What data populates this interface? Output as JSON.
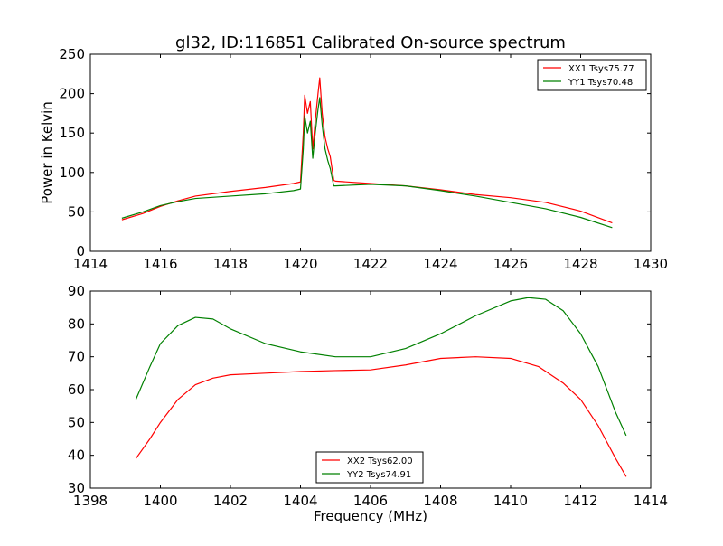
{
  "figure": {
    "title": "gl32, ID:116851 Calibrated On-source spectrum",
    "ylabel": "Power in Kelvin",
    "xlabel": "Frequency (MHz)"
  },
  "chart_data": [
    {
      "type": "line",
      "title": "gl32, ID:116851 Calibrated On-source spectrum",
      "xlabel": "",
      "ylabel": "Power in Kelvin",
      "xlim": [
        1414,
        1430
      ],
      "ylim": [
        0,
        250
      ],
      "xticks": [
        1414,
        1416,
        1418,
        1420,
        1422,
        1424,
        1426,
        1428,
        1430
      ],
      "yticks": [
        0,
        50,
        100,
        150,
        200,
        250
      ],
      "grid": false,
      "legend_position": "top-right",
      "series": [
        {
          "name": "XX1 Tsys75.77",
          "color": "#ff0000",
          "points": [
            [
              1414.9,
              40
            ],
            [
              1415.5,
              48
            ],
            [
              1416,
              57
            ],
            [
              1416.5,
              64
            ],
            [
              1417,
              70
            ],
            [
              1418,
              76
            ],
            [
              1419,
              81
            ],
            [
              1419.8,
              86
            ],
            [
              1420.0,
              88
            ],
            [
              1420.08,
              150
            ],
            [
              1420.12,
              198
            ],
            [
              1420.2,
              175
            ],
            [
              1420.28,
              190
            ],
            [
              1420.35,
              130
            ],
            [
              1420.42,
              165
            ],
            [
              1420.5,
              200
            ],
            [
              1420.55,
              220
            ],
            [
              1420.62,
              175
            ],
            [
              1420.7,
              145
            ],
            [
              1420.78,
              130
            ],
            [
              1420.85,
              120
            ],
            [
              1420.95,
              90
            ],
            [
              1421,
              89
            ],
            [
              1422,
              86
            ],
            [
              1423,
              83
            ],
            [
              1424,
              78
            ],
            [
              1425,
              72
            ],
            [
              1426,
              68
            ],
            [
              1427,
              62
            ],
            [
              1428,
              51
            ],
            [
              1428.9,
              36
            ]
          ]
        },
        {
          "name": "YY1 Tsys70.48",
          "color": "#008000",
          "points": [
            [
              1414.9,
              42
            ],
            [
              1415.5,
              50
            ],
            [
              1416,
              58
            ],
            [
              1416.5,
              63
            ],
            [
              1417,
              67
            ],
            [
              1418,
              70
            ],
            [
              1419,
              73
            ],
            [
              1419.8,
              77
            ],
            [
              1420.0,
              79
            ],
            [
              1420.08,
              130
            ],
            [
              1420.12,
              172
            ],
            [
              1420.2,
              150
            ],
            [
              1420.28,
              165
            ],
            [
              1420.35,
              118
            ],
            [
              1420.42,
              150
            ],
            [
              1420.5,
              180
            ],
            [
              1420.55,
              195
            ],
            [
              1420.62,
              160
            ],
            [
              1420.7,
              130
            ],
            [
              1420.78,
              115
            ],
            [
              1420.85,
              105
            ],
            [
              1420.95,
              83
            ],
            [
              1421,
              83
            ],
            [
              1422,
              85
            ],
            [
              1423,
              83
            ],
            [
              1424,
              77
            ],
            [
              1425,
              70
            ],
            [
              1426,
              62
            ],
            [
              1427,
              54
            ],
            [
              1428,
              43
            ],
            [
              1428.9,
              30
            ]
          ]
        }
      ]
    },
    {
      "type": "line",
      "title": "",
      "xlabel": "Frequency (MHz)",
      "ylabel": "",
      "xlim": [
        1398,
        1414
      ],
      "ylim": [
        30,
        90
      ],
      "xticks": [
        1398,
        1400,
        1402,
        1404,
        1406,
        1408,
        1410,
        1412,
        1414
      ],
      "yticks": [
        30,
        40,
        50,
        60,
        70,
        80,
        90
      ],
      "grid": false,
      "legend_position": "bottom-center",
      "series": [
        {
          "name": "XX2 Tsys62.00",
          "color": "#ff0000",
          "points": [
            [
              1399.3,
              39
            ],
            [
              1399.7,
              45
            ],
            [
              1400,
              50
            ],
            [
              1400.5,
              57
            ],
            [
              1401,
              61.5
            ],
            [
              1401.5,
              63.5
            ],
            [
              1402,
              64.5
            ],
            [
              1403,
              65
            ],
            [
              1404,
              65.5
            ],
            [
              1405,
              65.8
            ],
            [
              1406,
              66
            ],
            [
              1407,
              67.5
            ],
            [
              1408,
              69.5
            ],
            [
              1409,
              70
            ],
            [
              1410,
              69.5
            ],
            [
              1410.8,
              67
            ],
            [
              1411.5,
              62
            ],
            [
              1412,
              57
            ],
            [
              1412.5,
              49
            ],
            [
              1413,
              39
            ],
            [
              1413.3,
              33.5
            ]
          ]
        },
        {
          "name": "YY2 Tsys74.91",
          "color": "#008000",
          "points": [
            [
              1399.3,
              57
            ],
            [
              1399.7,
              67
            ],
            [
              1400,
              74
            ],
            [
              1400.5,
              79.5
            ],
            [
              1401,
              82
            ],
            [
              1401.5,
              81.5
            ],
            [
              1402,
              78.5
            ],
            [
              1403,
              74
            ],
            [
              1404,
              71.5
            ],
            [
              1405,
              70
            ],
            [
              1406,
              70
            ],
            [
              1407,
              72.5
            ],
            [
              1408,
              77
            ],
            [
              1409,
              82.5
            ],
            [
              1410,
              87
            ],
            [
              1410.5,
              88
            ],
            [
              1411,
              87.5
            ],
            [
              1411.5,
              84
            ],
            [
              1412,
              77
            ],
            [
              1412.5,
              67
            ],
            [
              1413,
              53
            ],
            [
              1413.3,
              46
            ]
          ]
        }
      ]
    }
  ]
}
